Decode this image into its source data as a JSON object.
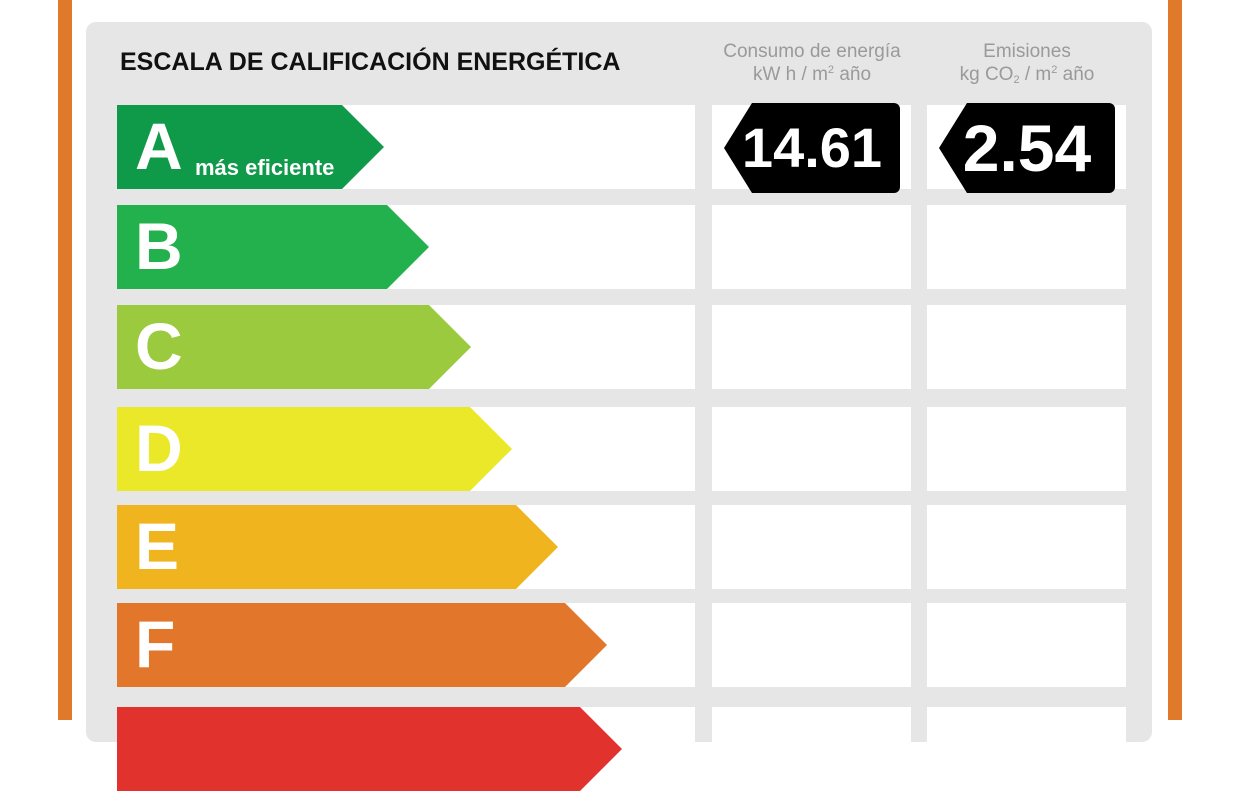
{
  "title": "ESCALA DE CALIFICACIÓN ENERGÉTICA",
  "columns": {
    "consumo": {
      "line1": "Consumo de energía",
      "line2_pre": "kW h / m",
      "sup": "2",
      "line2_post": " año"
    },
    "emisiones": {
      "line1": "Emisiones",
      "line2_pre": "kg CO",
      "sub": "2",
      "line2_mid": " / m",
      "sup": "2",
      "line2_post": " año"
    }
  },
  "ratings": [
    {
      "letter": "A",
      "label": "más eficiente",
      "color": "#0f9a4a"
    },
    {
      "letter": "B",
      "label": "",
      "color": "#22b14c"
    },
    {
      "letter": "C",
      "label": "",
      "color": "#9bca3e"
    },
    {
      "letter": "D",
      "label": "",
      "color": "#eae828"
    },
    {
      "letter": "E",
      "label": "",
      "color": "#f0b51e"
    },
    {
      "letter": "F",
      "label": "",
      "color": "#e2762a"
    },
    {
      "letter": "",
      "label": "",
      "color": "#e2322d"
    }
  ],
  "values": {
    "consumo": "14.61",
    "emisiones": "2.54",
    "rating": "A"
  }
}
